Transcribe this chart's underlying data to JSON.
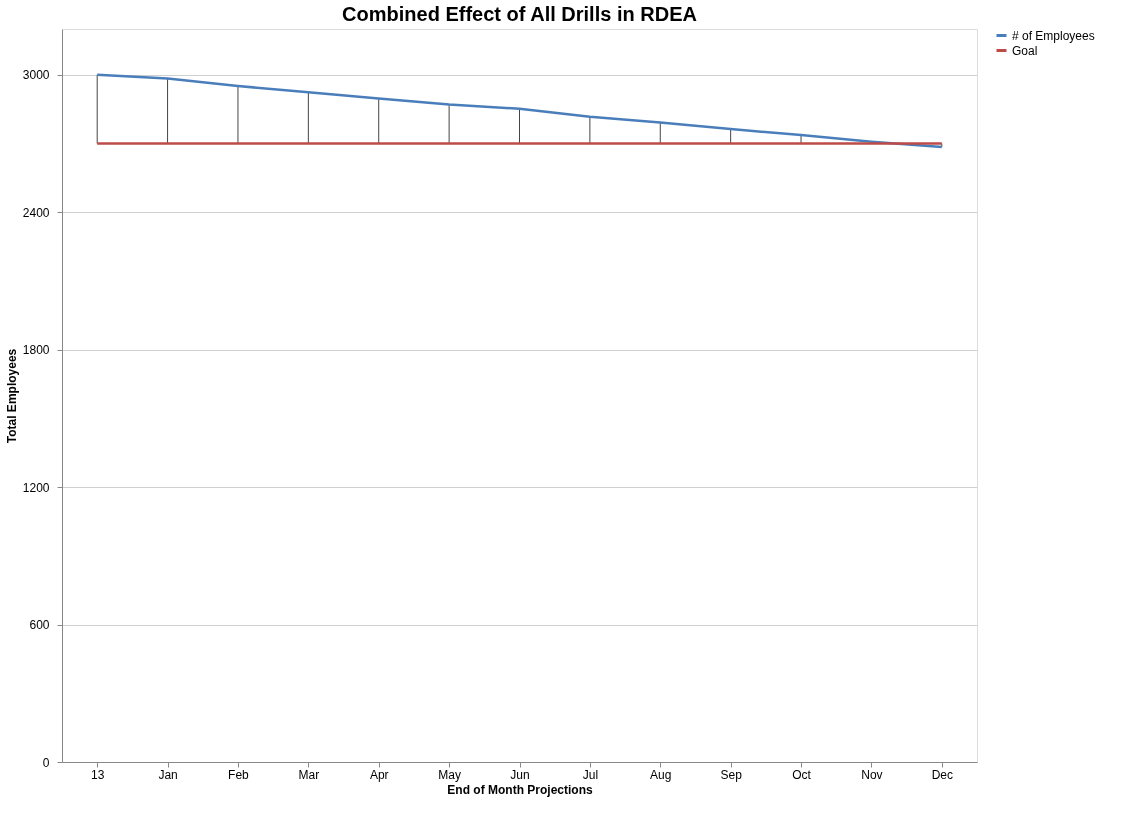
{
  "chart_data": {
    "type": "line",
    "title": "Combined Effect of All Drills in RDEA",
    "xlabel": "End of Month Projections",
    "ylabel": "Total Employees",
    "categories": [
      "13",
      "Jan",
      "Feb",
      "Mar",
      "Apr",
      "May",
      "Jun",
      "Jul",
      "Aug",
      "Sep",
      "Oct",
      "Nov",
      "Dec"
    ],
    "series": [
      {
        "name": "# of Employees",
        "color": "#4a7ebb",
        "values": [
          3000,
          2984,
          2951,
          2924,
          2897,
          2870,
          2852,
          2817,
          2792,
          2763,
          2737,
          2708,
          2685
        ],
        "errors": [
          [
            2700,
            3000
          ],
          [
            2700,
            2984
          ],
          [
            2700,
            2951
          ],
          [
            2700,
            2924
          ],
          [
            2700,
            2897
          ],
          [
            2700,
            2870
          ],
          [
            2700,
            2852
          ],
          [
            2700,
            2817
          ],
          [
            2700,
            2792
          ],
          [
            2700,
            2763
          ],
          [
            2700,
            2737
          ],
          [
            2700,
            2708
          ],
          [
            2685,
            2700
          ]
        ]
      },
      {
        "name": "Goal",
        "color": "#be4b48",
        "values": [
          2700,
          2700,
          2700,
          2700,
          2700,
          2700,
          2700,
          2700,
          2700,
          2700,
          2700,
          2700,
          2700
        ]
      }
    ],
    "ylim": [
      0,
      3200
    ],
    "yticks": [
      0,
      600,
      1200,
      1800,
      2400,
      3000
    ],
    "grid": "y",
    "legend": "right",
    "marker": "none",
    "line_style": "solid"
  }
}
